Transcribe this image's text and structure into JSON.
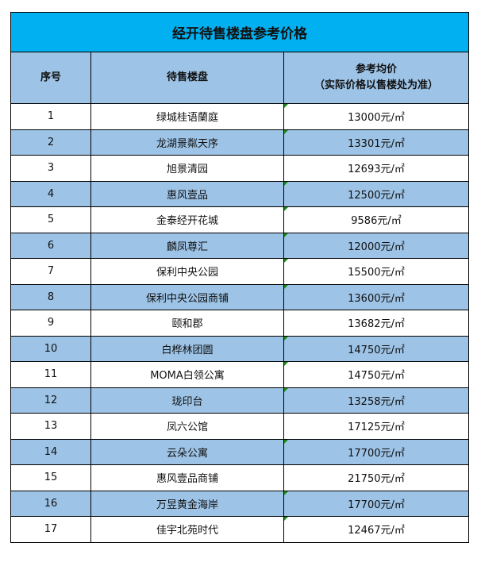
{
  "title": "经开待售楼盘参考价格",
  "headers": {
    "no": "序号",
    "name": "待售楼盘",
    "price_line1": "参考均价",
    "price_line2": "（实际价格以售楼处为准）"
  },
  "colors": {
    "title_bg": "#00b0f0",
    "alt_row_bg": "#9dc3e6"
  },
  "rows": [
    {
      "no": "1",
      "name": "绿城桂语蘭庭",
      "price": "13000元/㎡"
    },
    {
      "no": "2",
      "name": "龙湖景粼天序",
      "price": "13301元/㎡"
    },
    {
      "no": "3",
      "name": "旭景清园",
      "price": "12693元/㎡"
    },
    {
      "no": "4",
      "name": "惠风壹品",
      "price": "12500元/㎡"
    },
    {
      "no": "5",
      "name": "金泰经开花城",
      "price": "9586元/㎡"
    },
    {
      "no": "6",
      "name": "麟凤尊汇",
      "price": "12000元/㎡"
    },
    {
      "no": "7",
      "name": "保利中央公园",
      "price": "15500元/㎡"
    },
    {
      "no": "8",
      "name": "保利中央公园商铺",
      "price": "13600元/㎡"
    },
    {
      "no": "9",
      "name": "颐和郡",
      "price": "13682元/㎡"
    },
    {
      "no": "10",
      "name": "白桦林团圆",
      "price": "14750元/㎡"
    },
    {
      "no": "11",
      "name": "MOMA白领公寓",
      "price": "14750元/㎡"
    },
    {
      "no": "12",
      "name": "珑印台",
      "price": "13258元/㎡"
    },
    {
      "no": "13",
      "name": "凤六公馆",
      "price": "17125元/㎡"
    },
    {
      "no": "14",
      "name": "云朵公寓",
      "price": "17700元/㎡"
    },
    {
      "no": "15",
      "name": "惠风壹品商铺",
      "price": "21750元/㎡"
    },
    {
      "no": "16",
      "name": "万昱黄金海岸",
      "price": "17700元/㎡"
    },
    {
      "no": "17",
      "name": "佳宇北苑时代",
      "price": "12467元/㎡"
    }
  ]
}
